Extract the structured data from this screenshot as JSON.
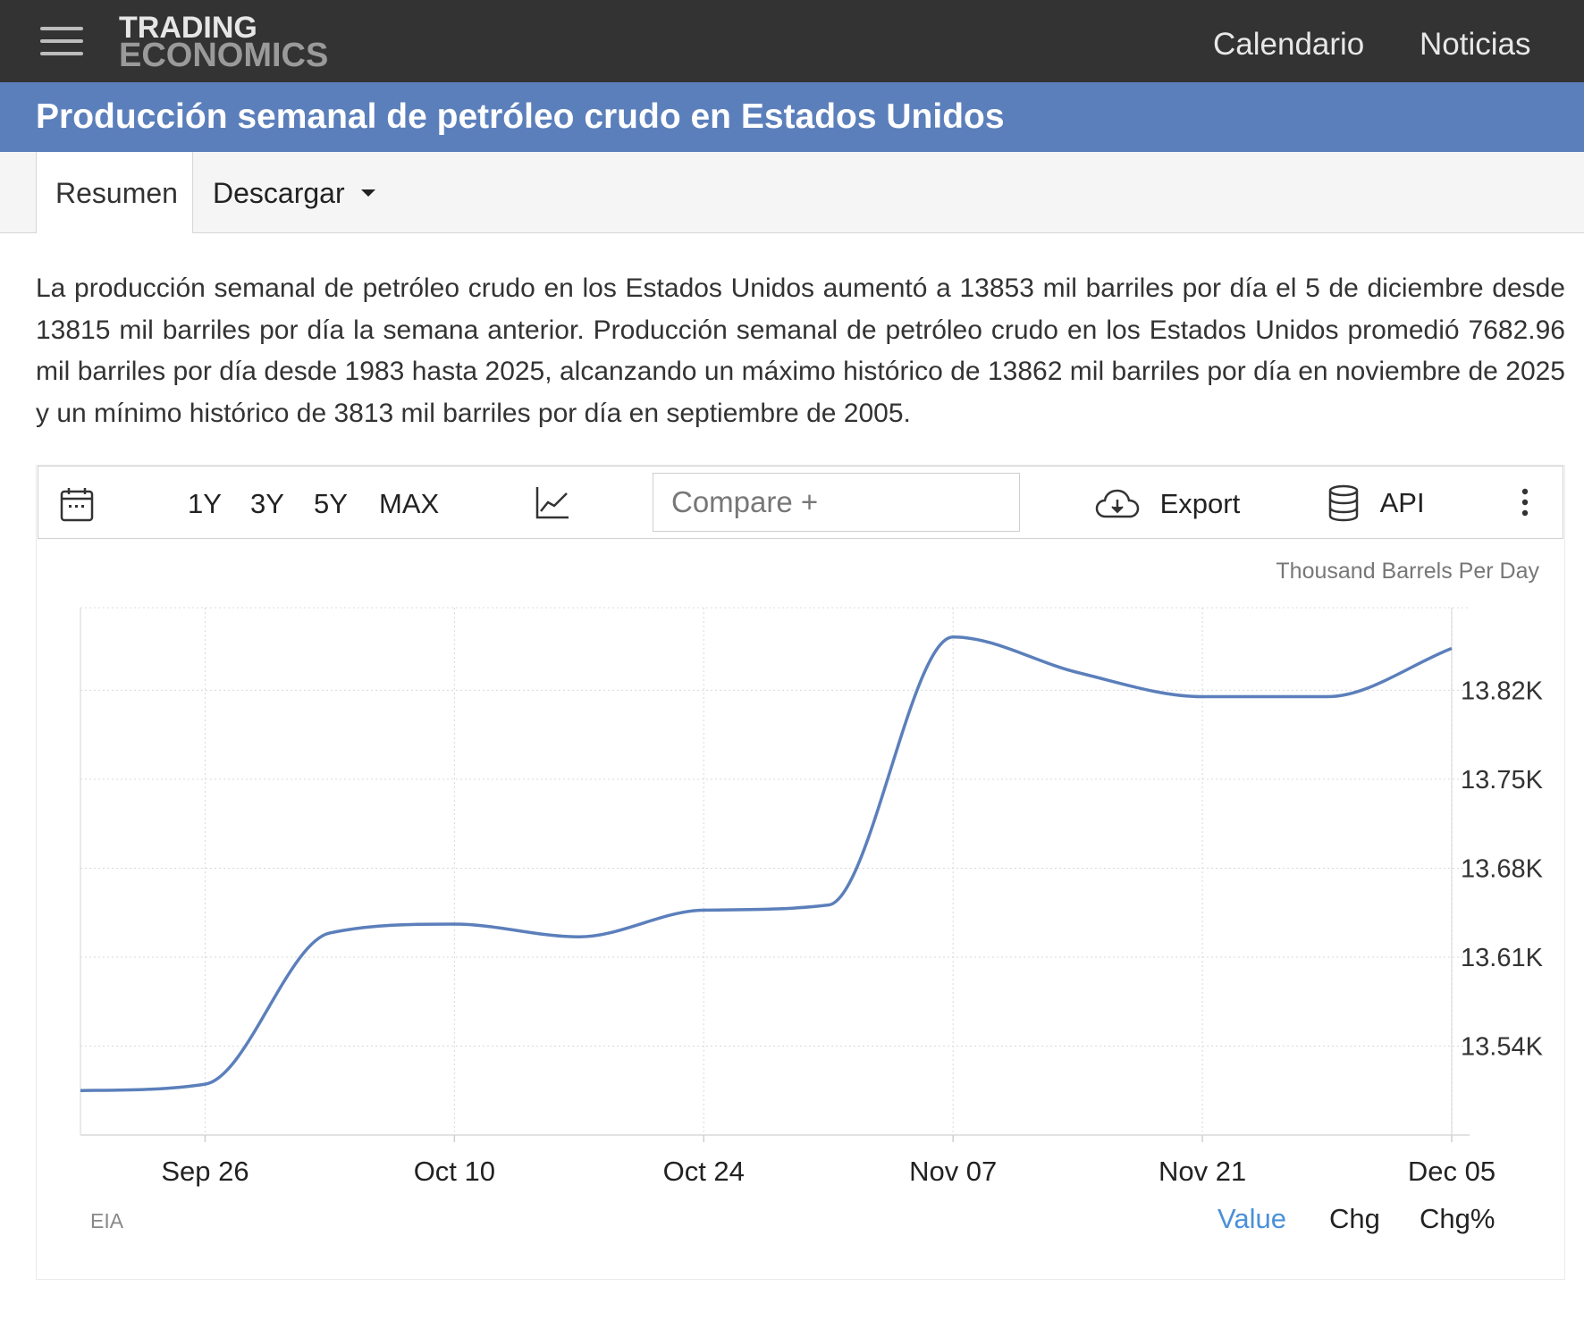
{
  "header": {
    "logo_line1": "TRADING",
    "logo_line2": "ECONOMICS",
    "nav": [
      {
        "label": "Calendario"
      },
      {
        "label": "Noticias"
      }
    ]
  },
  "page": {
    "title": "Producción semanal de petróleo crudo en Estados Unidos",
    "tabs": {
      "resumen": "Resumen",
      "descargar": "Descargar"
    },
    "description": "La producción semanal de petróleo crudo en los Estados Unidos aumentó a 13853 mil barriles por día el 5 de diciembre desde 13815 mil barriles por día la semana anterior. Producción semanal de petróleo crudo en los Estados Unidos promedió 7682.96 mil barriles por día desde 1983 hasta 2025, alcanzando un máximo histórico de 13862 mil barriles por día en noviembre de 2025 y un mínimo histórico de 3813 mil barriles por día en septiembre de 2005."
  },
  "toolbar": {
    "ranges": [
      "1Y",
      "3Y",
      "5Y",
      "MAX"
    ],
    "compare_placeholder": "Compare +",
    "export_label": "Export",
    "api_label": "API",
    "icons": [
      "calendar-icon",
      "line-chart-icon",
      "cloud-download-icon",
      "database-icon",
      "more-vertical-icon"
    ]
  },
  "chart_data": {
    "type": "line",
    "ylabel": "Thousand Barrels Per Day",
    "source": "EIA",
    "x": [
      "2025-09-19",
      "2025-09-26",
      "2025-10-03",
      "2025-10-10",
      "2025-10-17",
      "2025-10-24",
      "2025-10-31",
      "2025-11-07",
      "2025-11-14",
      "2025-11-21",
      "2025-11-28",
      "2025-12-05"
    ],
    "series": [
      {
        "values": [
          13505,
          13510,
          13629,
          13636,
          13626,
          13647,
          13651,
          13862,
          13834,
          13815,
          13815,
          13853
        ],
        "color": "#5b7fbb"
      }
    ],
    "x_tick_labels": [
      "Sep 26",
      "Oct 10",
      "Oct 24",
      "Nov 07",
      "Nov 21",
      "Dec 05"
    ],
    "x_tick_index": [
      1,
      3,
      5,
      7,
      9,
      11
    ],
    "y_ticks": [
      13540,
      13610,
      13680,
      13750,
      13820
    ],
    "y_tick_labels": [
      "13.54K",
      "13.61K",
      "13.68K",
      "13.75K",
      "13.82K"
    ],
    "ylim": [
      13470,
      13885
    ],
    "grid": true,
    "view_modes": [
      "Value",
      "Chg",
      "Chg%"
    ],
    "active_view": "Value"
  }
}
